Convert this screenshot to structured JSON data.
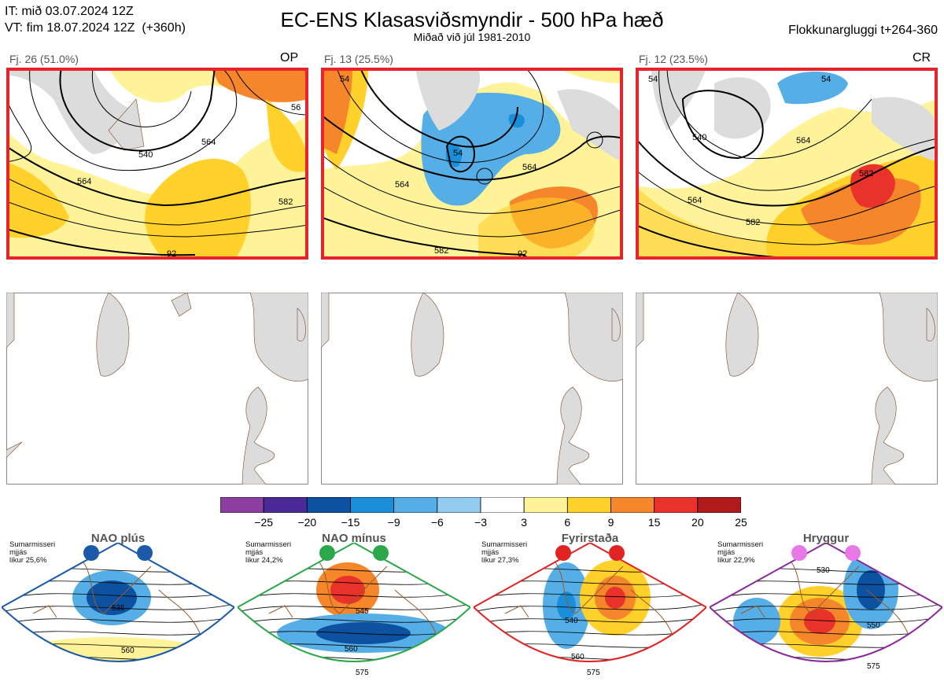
{
  "header": {
    "init": "IT: mið 03.07.2024 12Z",
    "valid": "VT: fim 18.07.2024 12Z  (+360h)",
    "title": "EC-ENS Klasasviðsmyndir - 500 hPa hæð",
    "subtitle": "Miðað við júl 1981-2010",
    "window": "Flokkunargluggi t+264-360"
  },
  "clusters": [
    {
      "label": "Fj. 26 (51.0%)",
      "tag": "OP",
      "members": 26,
      "percent": 51.0,
      "contours": [
        "540",
        "564",
        "582",
        "92",
        "56",
        "56",
        "56"
      ]
    },
    {
      "label": "Fj. 13 (25.5%)",
      "tag": "",
      "members": 13,
      "percent": 25.5,
      "contours": [
        "564",
        "582",
        "92",
        "54",
        "54",
        "54",
        "564"
      ]
    },
    {
      "label": "Fj. 12 (23.5%)",
      "tag": "CR",
      "members": 12,
      "percent": 23.5,
      "contours": [
        "540",
        "564",
        "582",
        "582",
        "564",
        "54",
        "54"
      ]
    }
  ],
  "colors": {
    "cluster_border": "#e8232a",
    "land": "#dcdcdc",
    "coast": "#7a4a26",
    "nao_plus": "#1a5aa8",
    "nao_minus": "#2aa84a",
    "blocking": "#e02323",
    "ridge": "#8a2a9a"
  },
  "chart_data": {
    "type": "heatmap",
    "title": "EC-ENS Klasasviðsmyndir - 500 hPa hæð",
    "colorbar": {
      "ticks": [
        "−25",
        "−20",
        "−15",
        "−9",
        "−6",
        "−3",
        "3",
        "6",
        "9",
        "15",
        "20",
        "25"
      ],
      "colors": [
        "#8c3fa0",
        "#4b2a97",
        "#0d52a0",
        "#1a8ed8",
        "#55aee6",
        "#94ccf0",
        "#ffffff",
        "#fff39a",
        "#ffd12a",
        "#f5862a",
        "#e8322a",
        "#b01a1a"
      ]
    },
    "clusters": [
      {
        "name": "Fj. 26",
        "members": 26,
        "percent": 51.0
      },
      {
        "name": "Fj. 13",
        "members": 13,
        "percent": 25.5
      },
      {
        "name": "Fj. 12",
        "members": 12,
        "percent": 23.5
      }
    ],
    "regimes": [
      {
        "name": "NAO plús",
        "percent": 25.6,
        "contours": [
          "535",
          "560"
        ]
      },
      {
        "name": "NAO mínus",
        "percent": 24.2,
        "contours": [
          "545",
          "560",
          "575"
        ]
      },
      {
        "name": "Fyrirstaða",
        "percent": 27.3,
        "contours": [
          "540",
          "560",
          "575"
        ]
      },
      {
        "name": "Hryggur",
        "percent": 22.9,
        "contours": [
          "530",
          "550",
          "575"
        ]
      }
    ]
  },
  "regimes": [
    {
      "title": "NAO plús",
      "note": "Sumarmisseri\nmjjás\nlíkur 25,6%"
    },
    {
      "title": "NAO mínus",
      "note": "Sumarmisseri\nmjjás\nlíkur 24,2%"
    },
    {
      "title": "Fyrirstaða",
      "note": "Sumarmisseri\nmjjás\nlíkur 27,3%"
    },
    {
      "title": "Hryggur",
      "note": "Sumarmisseri\nmjjás\nlíkur 22,9%"
    }
  ]
}
